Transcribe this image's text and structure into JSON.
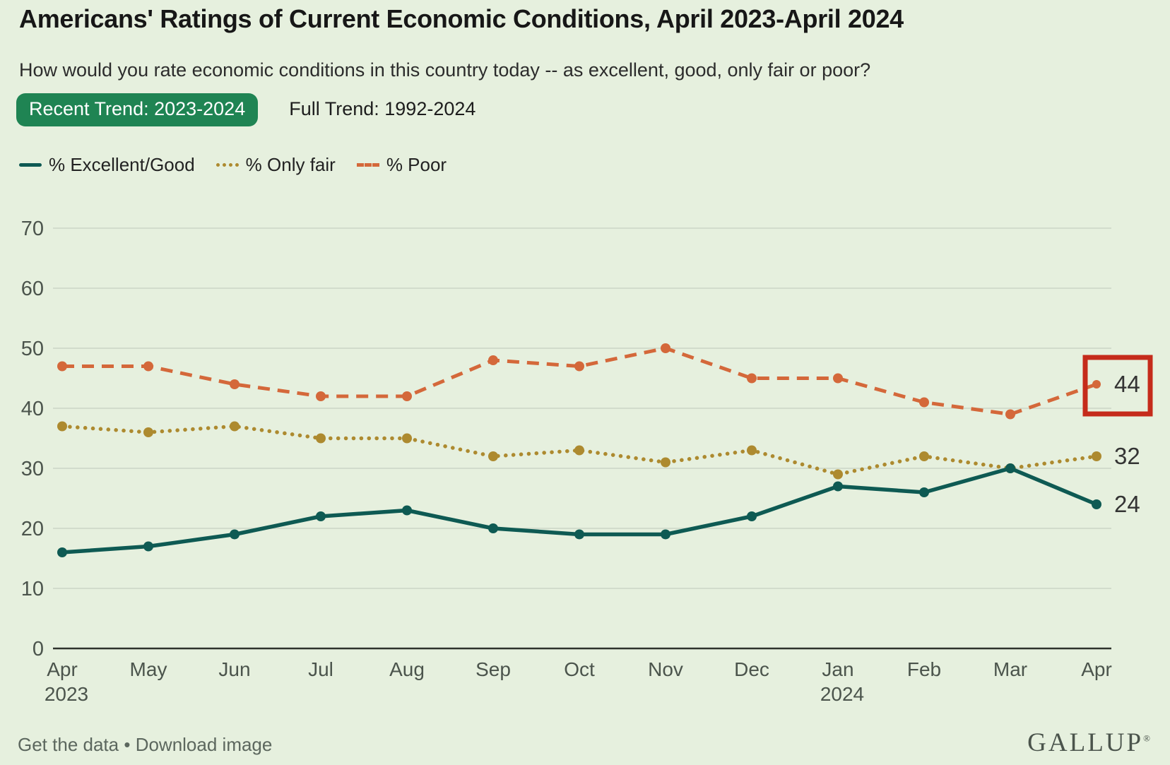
{
  "header": {
    "title": "Americans' Ratings of Current Economic Conditions, April 2023-April 2024",
    "subtitle": "How would you rate economic conditions in this country today -- as excellent, good, only fair or poor?"
  },
  "tabs": [
    {
      "label": "Recent Trend: 2023-2024",
      "active": true
    },
    {
      "label": "Full Trend: 1992-2024",
      "active": false
    }
  ],
  "legend": [
    {
      "label": "% Excellent/Good",
      "style": "solid",
      "color": "#0e5a53"
    },
    {
      "label": "% Only fair",
      "style": "dotted",
      "color": "#ad8a2f"
    },
    {
      "label": "% Poor",
      "style": "dashed",
      "color": "#d4683a"
    }
  ],
  "chart_data": {
    "type": "line",
    "x": [
      "Apr 2023",
      "May",
      "Jun",
      "Jul",
      "Aug",
      "Sep",
      "Oct",
      "Nov",
      "Dec",
      "Jan 2024",
      "Feb",
      "Mar",
      "Apr"
    ],
    "series": [
      {
        "name": "% Excellent/Good",
        "color": "#0e5a53",
        "dash": "solid",
        "values": [
          16,
          17,
          19,
          22,
          23,
          20,
          19,
          19,
          22,
          27,
          26,
          30,
          24
        ],
        "end_label": "24"
      },
      {
        "name": "% Only fair",
        "color": "#ad8a2f",
        "dash": "dotted",
        "values": [
          37,
          36,
          37,
          35,
          35,
          32,
          33,
          31,
          33,
          29,
          32,
          30,
          32
        ],
        "end_label": "32"
      },
      {
        "name": "% Poor",
        "color": "#d4683a",
        "dash": "dashed",
        "values": [
          47,
          47,
          44,
          42,
          42,
          48,
          47,
          50,
          45,
          45,
          41,
          39,
          44
        ],
        "end_label": "44",
        "end_label_boxed": true
      }
    ],
    "ylim": [
      0,
      70
    ],
    "yticks": [
      0,
      10,
      20,
      30,
      40,
      50,
      60,
      70
    ],
    "grid": true,
    "legend_position": "top",
    "annotations": [
      {
        "type": "box",
        "target": "% Poor April 2024 value",
        "color": "#c52b1b"
      }
    ],
    "colors": {
      "gridline": "#ccd6c6",
      "axis": "#2e332c",
      "tick_text": "#4b544c",
      "end_label_text": "#343434"
    }
  },
  "footer": {
    "get_data": "Get the data",
    "separator": "•",
    "download": "Download image",
    "brand": "GALLUP",
    "brand_mark": "®"
  }
}
